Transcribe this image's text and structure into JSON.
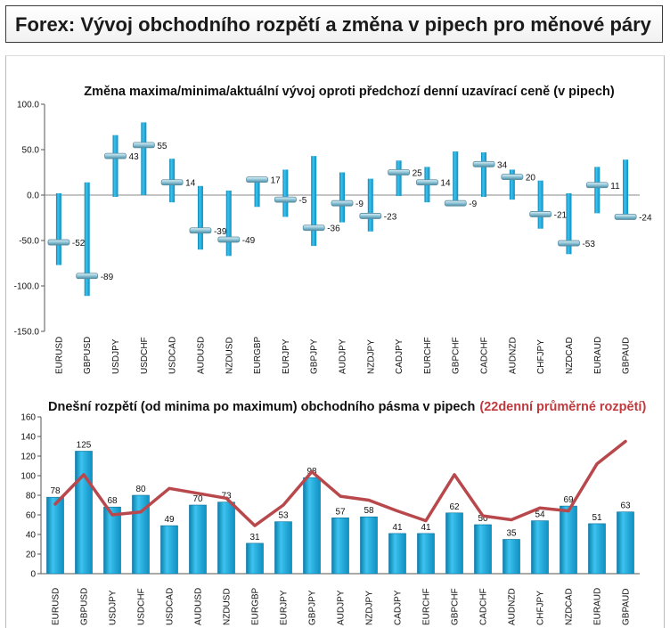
{
  "header": {
    "title": "Forex: Vývoj obchodního rozpětí a změna v pipech pro měnové páry"
  },
  "chart_data": [
    {
      "type": "range",
      "title": "Změna maxima/minima/aktuální vývoj oproti předchozí denní uzavírací ceně (v pipech)",
      "ylim": [
        -150,
        100
      ],
      "yticks": [
        "100.0",
        "50.0",
        "0.0",
        "-50.0",
        "-100.0",
        "-150.0"
      ],
      "yticks_values": [
        100,
        50,
        0,
        -50,
        -100,
        -150
      ],
      "categories": [
        "EURUSD",
        "GBPUSD",
        "USDJPY",
        "USDCHF",
        "USDCAD",
        "AUDUSD",
        "NZDUSD",
        "EURGBP",
        "EURJPY",
        "GBPJPY",
        "AUDJPY",
        "NZDJPY",
        "CADJPY",
        "EURCHF",
        "GBPCHF",
        "CADCHF",
        "AUDNZD",
        "CHFJPY",
        "NZDCAD",
        "EURAUD",
        "GBPAUD"
      ],
      "high": [
        2,
        14,
        66,
        80,
        40,
        10,
        5,
        17,
        28,
        43,
        25,
        18,
        38,
        31,
        48,
        47,
        28,
        16,
        2,
        31,
        39
      ],
      "low": [
        -77,
        -111,
        -2,
        0,
        -8,
        -60,
        -67,
        -13,
        -24,
        -56,
        -30,
        -40,
        -1,
        -8,
        -10,
        -2,
        -5,
        -37,
        -65,
        -20,
        -24
      ],
      "current": [
        -52,
        -89,
        43,
        55,
        14,
        -39,
        -49,
        17,
        -5,
        -36,
        -9,
        -23,
        25,
        14,
        -9,
        34,
        20,
        -21,
        -53,
        11,
        -24
      ],
      "labels": [
        "-52",
        "-89",
        "43",
        "55",
        "14",
        "-39",
        "-49",
        "17",
        "-5",
        "-36",
        "-9",
        "-23",
        "25",
        "14",
        "-9",
        "34",
        "20",
        "-21",
        "-53",
        "11",
        "-24"
      ],
      "bar_color": "#1aa3d4",
      "marker_color": "#8fc4d6",
      "grid": false
    },
    {
      "type": "bar+line",
      "title": "Dnešní rozpětí (od minima po maximum) obchodního pásma v pipech",
      "title_suffix": "(22denní průměrné rozpětí)",
      "ylim": [
        0,
        160
      ],
      "yticks": [
        "160",
        "140",
        "120",
        "100",
        "80",
        "60",
        "40",
        "20",
        "0"
      ],
      "yticks_values": [
        160,
        140,
        120,
        100,
        80,
        60,
        40,
        20,
        0
      ],
      "categories": [
        "EURUSD",
        "GBPUSD",
        "USDJPY",
        "USDCHF",
        "USDCAD",
        "AUDUSD",
        "NZDUSD",
        "EURGBP",
        "EURJPY",
        "GBPJPY",
        "AUDJPY",
        "NZDJPY",
        "CADJPY",
        "EURCHF",
        "GBPCHF",
        "CADCHF",
        "AUDNZD",
        "CHFJPY",
        "NZDCAD",
        "EURAUD",
        "GBPAUD"
      ],
      "values": [
        78,
        125,
        68,
        80,
        49,
        70,
        73,
        31,
        53,
        98,
        57,
        58,
        41,
        41,
        62,
        50,
        35,
        54,
        69,
        51,
        63
      ],
      "labels": [
        "78",
        "125",
        "68",
        "80",
        "49",
        "70",
        "73",
        "31",
        "53",
        "98",
        "57",
        "58",
        "41",
        "41",
        "62",
        "50",
        "35",
        "54",
        "69",
        "51",
        "63"
      ],
      "average_line": [
        71,
        101,
        60,
        63,
        87,
        82,
        77,
        49,
        70,
        104,
        79,
        75,
        64,
        54,
        101,
        59,
        55,
        67,
        64,
        112,
        135
      ],
      "bar_color": "#1aa3d4",
      "line_color": "#b8484b",
      "grid": false
    }
  ]
}
